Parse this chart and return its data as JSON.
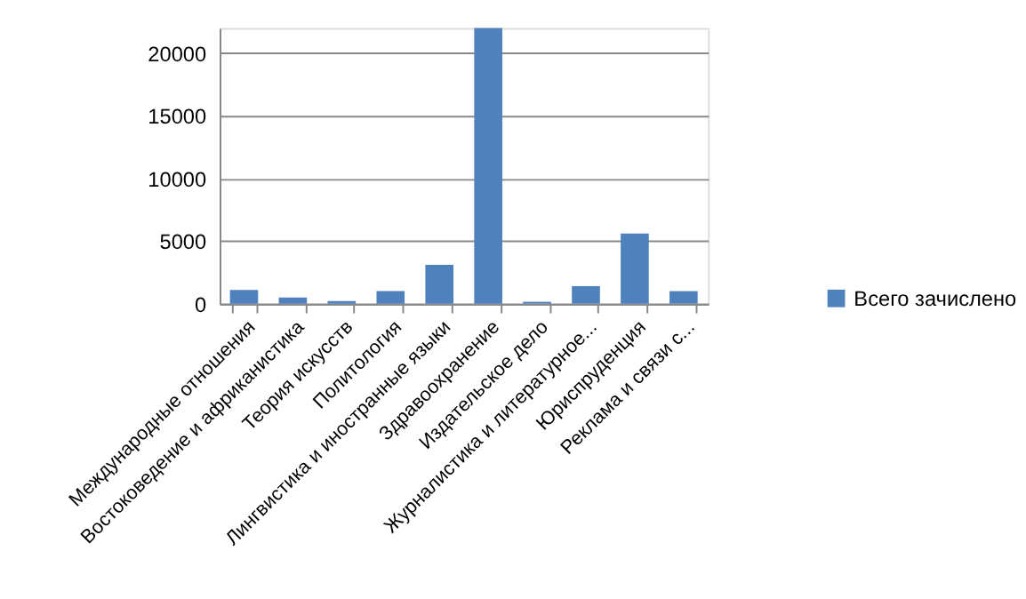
{
  "chart_data": {
    "type": "bar",
    "categories": [
      "Международные отношения",
      "Востоковедение и африканистика",
      "Теория искусств",
      "Политология",
      "Лингвистика и иностранные языки",
      "Здравоохранение",
      "Издательское дело",
      "Журналистика и литературное...",
      "Юриспруденция",
      "Реклама и связи с..."
    ],
    "series": [
      {
        "name": "Всего зачислено",
        "color": "#4f81bd",
        "values": [
          1100,
          500,
          200,
          1000,
          3100,
          22000,
          150,
          1400,
          5600,
          1000
        ]
      }
    ],
    "ylim": [
      0,
      22000
    ],
    "yticks": [
      0,
      5000,
      10000,
      15000,
      20000
    ],
    "grid": "y",
    "legend": "right"
  }
}
